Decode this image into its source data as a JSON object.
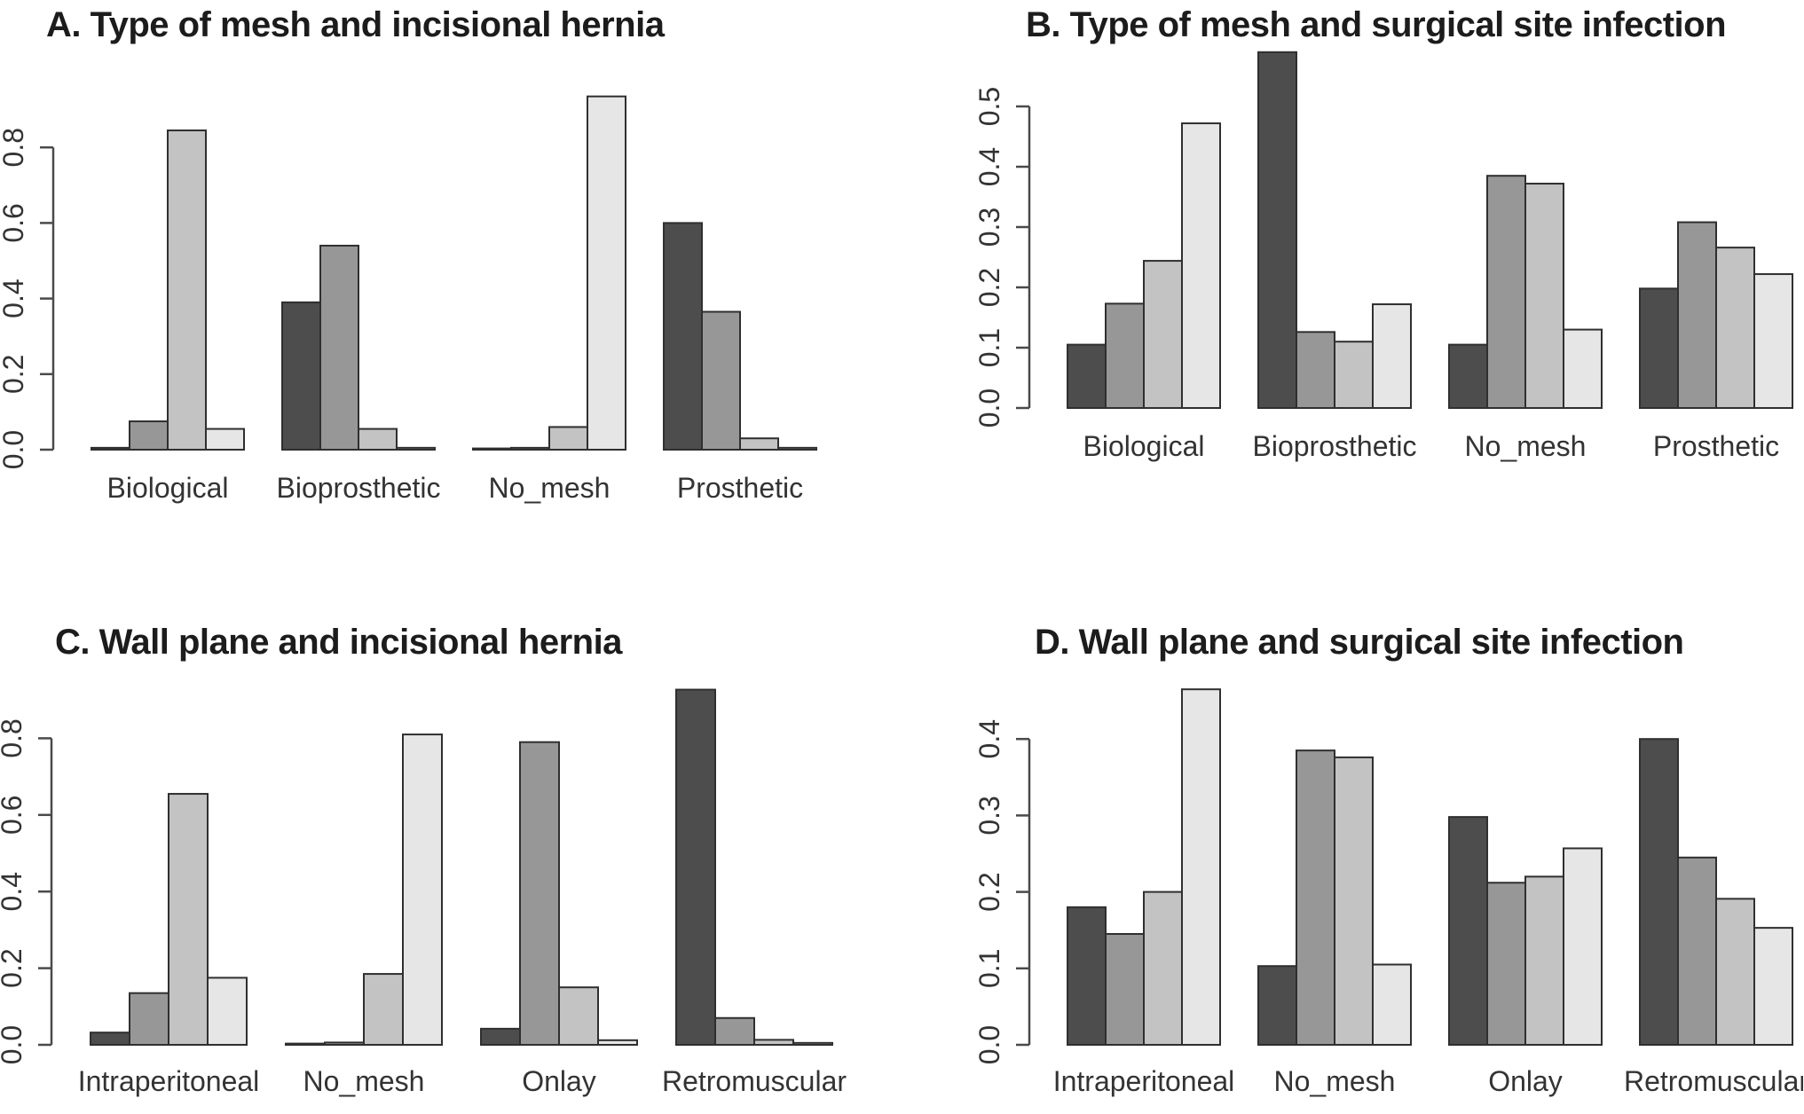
{
  "figure": {
    "background": "#ffffff",
    "description_visible_text_only": true
  },
  "palette": {
    "bar_fills": [
      "#4d4d4d",
      "#979797",
      "#c3c3c3",
      "#e6e6e6"
    ],
    "bar_border": "#2f2f2f",
    "axis_color": "#4a4a4a",
    "text_color": "#333333",
    "title_color": "#1c1c1c",
    "background": "#ffffff"
  },
  "chart_data": [
    {
      "type": "bar",
      "panel": "A",
      "title": "A. Type of mesh and incisional hernia",
      "categories": [
        "Biological",
        "Bioprosthetic",
        "No_mesh",
        "Prosthetic"
      ],
      "series": [
        {
          "name": "shade-1-darkest",
          "color": "#4d4d4d",
          "values": [
            0.005,
            0.39,
            0.002,
            0.6
          ]
        },
        {
          "name": "shade-2-dark",
          "color": "#979797",
          "values": [
            0.075,
            0.54,
            0.005,
            0.365
          ]
        },
        {
          "name": "shade-3-light",
          "color": "#c3c3c3",
          "values": [
            0.845,
            0.055,
            0.06,
            0.03
          ]
        },
        {
          "name": "shade-4-lightest",
          "color": "#e6e6e6",
          "values": [
            0.055,
            0.005,
            0.935,
            0.005
          ]
        }
      ],
      "yticks": [
        0.0,
        0.2,
        0.4,
        0.6,
        0.8
      ],
      "ytick_labels": [
        "0.0",
        "0.2",
        "0.4",
        "0.6",
        "0.8"
      ],
      "ylim": [
        0,
        0.95
      ],
      "xlabel": "",
      "ylabel": "",
      "grid": false,
      "legend": "none"
    },
    {
      "type": "bar",
      "panel": "B",
      "title": "B. Type of mesh and surgical site infection",
      "categories": [
        "Biological",
        "Bioprosthetic",
        "No_mesh",
        "Prosthetic"
      ],
      "series": [
        {
          "name": "shade-1-darkest",
          "color": "#4d4d4d",
          "values": [
            0.105,
            0.59,
            0.105,
            0.198
          ]
        },
        {
          "name": "shade-2-dark",
          "color": "#979797",
          "values": [
            0.173,
            0.126,
            0.385,
            0.308
          ]
        },
        {
          "name": "shade-3-light",
          "color": "#c3c3c3",
          "values": [
            0.244,
            0.11,
            0.372,
            0.266
          ]
        },
        {
          "name": "shade-4-lightest",
          "color": "#e6e6e6",
          "values": [
            0.472,
            0.172,
            0.13,
            0.222
          ]
        }
      ],
      "yticks": [
        0.0,
        0.1,
        0.2,
        0.3,
        0.4,
        0.5
      ],
      "ytick_labels": [
        "0.0",
        "0.1",
        "0.2",
        "0.3",
        "0.4",
        "0.5"
      ],
      "ylim": [
        0,
        0.6
      ],
      "xlabel": "",
      "ylabel": "",
      "grid": false,
      "legend": "none"
    },
    {
      "type": "bar",
      "panel": "C",
      "title": "C. Wall plane and incisional hernia",
      "categories": [
        "Intraperitoneal",
        "No_mesh",
        "Onlay",
        "Retromuscular"
      ],
      "series": [
        {
          "name": "shade-1-darkest",
          "color": "#4d4d4d",
          "values": [
            0.032,
            0.002,
            0.042,
            0.927
          ]
        },
        {
          "name": "shade-2-dark",
          "color": "#979797",
          "values": [
            0.135,
            0.006,
            0.79,
            0.07
          ]
        },
        {
          "name": "shade-3-light",
          "color": "#c3c3c3",
          "values": [
            0.655,
            0.185,
            0.15,
            0.013
          ]
        },
        {
          "name": "shade-4-lightest",
          "color": "#e6e6e6",
          "values": [
            0.175,
            0.81,
            0.012,
            0.005
          ]
        }
      ],
      "yticks": [
        0.0,
        0.2,
        0.4,
        0.6,
        0.8
      ],
      "ytick_labels": [
        "0.0",
        "0.2",
        "0.4",
        "0.6",
        "0.8"
      ],
      "ylim": [
        0,
        0.95
      ],
      "xlabel": "",
      "ylabel": "",
      "grid": false,
      "legend": "none"
    },
    {
      "type": "bar",
      "panel": "D",
      "title": "D. Wall plane and surgical site infection",
      "categories": [
        "Intraperitoneal",
        "No_mesh",
        "Onlay",
        "Retromuscular"
      ],
      "series": [
        {
          "name": "shade-1-darkest",
          "color": "#4d4d4d",
          "values": [
            0.18,
            0.103,
            0.298,
            0.4
          ]
        },
        {
          "name": "shade-2-dark",
          "color": "#979797",
          "values": [
            0.145,
            0.385,
            0.212,
            0.245
          ]
        },
        {
          "name": "shade-3-light",
          "color": "#c3c3c3",
          "values": [
            0.2,
            0.376,
            0.22,
            0.191
          ]
        },
        {
          "name": "shade-4-lightest",
          "color": "#e6e6e6",
          "values": [
            0.465,
            0.105,
            0.257,
            0.153
          ]
        }
      ],
      "yticks": [
        0.0,
        0.1,
        0.2,
        0.3,
        0.4
      ],
      "ytick_labels": [
        "0.0",
        "0.1",
        "0.2",
        "0.3",
        "0.4"
      ],
      "ylim": [
        0,
        0.47
      ],
      "xlabel": "",
      "ylabel": "",
      "grid": false,
      "legend": "none"
    }
  ]
}
